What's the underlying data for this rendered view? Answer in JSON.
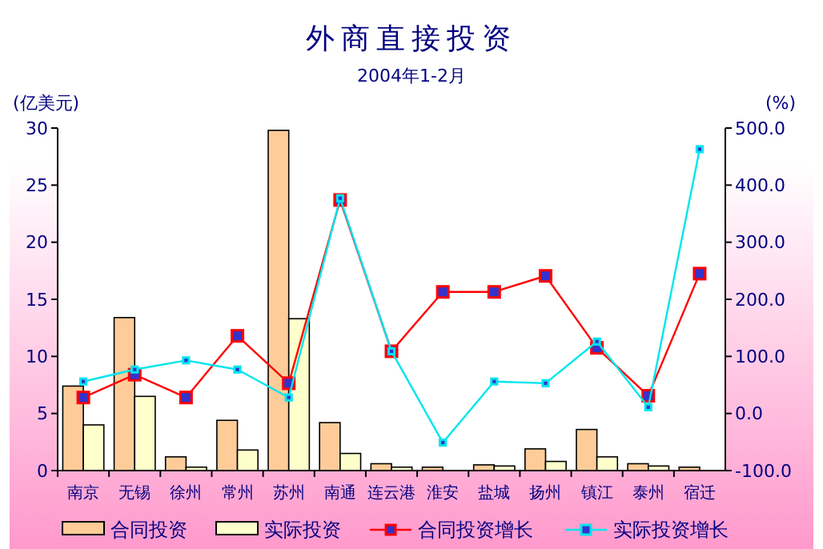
{
  "chart_data": {
    "type": "bar",
    "title": "外商直接投资",
    "subtitle": "2004年1-2月",
    "ylabel": "(亿美元)",
    "y2label": "(%)",
    "categories": [
      "南京",
      "无锡",
      "徐州",
      "常州",
      "苏州",
      "南通",
      "连云港",
      "淮安",
      "盐城",
      "扬州",
      "镇江",
      "泰州",
      "宿迁"
    ],
    "series": [
      {
        "name": "合同投资",
        "type": "bar",
        "color": "#ffcc99",
        "values": [
          7.4,
          13.4,
          1.2,
          4.4,
          29.8,
          4.2,
          0.6,
          0.3,
          0.5,
          1.9,
          3.6,
          0.6,
          0.3
        ]
      },
      {
        "name": "实际投资",
        "type": "bar",
        "color": "#ffffcc",
        "values": [
          4.0,
          6.5,
          0.3,
          1.8,
          13.3,
          1.5,
          0.3,
          0,
          0.4,
          0.8,
          1.2,
          0.4,
          0
        ]
      },
      {
        "name": "合同投资增长",
        "type": "line",
        "axis": "y2",
        "color": "#ff0000",
        "values": [
          28,
          68,
          28,
          136,
          53,
          374,
          109,
          213,
          213,
          241,
          115,
          31,
          245
        ]
      },
      {
        "name": "实际投资增长",
        "type": "line",
        "axis": "y2",
        "color": "#00e5ee",
        "values": [
          56,
          77,
          93,
          77,
          28,
          377,
          109,
          -51,
          56,
          53,
          126,
          11,
          463
        ]
      }
    ],
    "ylim": [
      0,
      30
    ],
    "yticks": [
      0,
      5,
      10,
      15,
      20,
      25,
      30
    ],
    "y2lim": [
      -100,
      500
    ],
    "y2ticks": [
      {
        "value": -100,
        "label": "-100.0"
      },
      {
        "value": 0,
        "label": "0.0"
      },
      {
        "value": 100,
        "label": "100.0"
      },
      {
        "value": 200,
        "label": "200.0"
      },
      {
        "value": 300,
        "label": "300.0"
      },
      {
        "value": 400,
        "label": "400.0"
      },
      {
        "value": 500,
        "label": "500.0"
      }
    ],
    "marker": "square",
    "legend": "bottom",
    "grid": false
  }
}
